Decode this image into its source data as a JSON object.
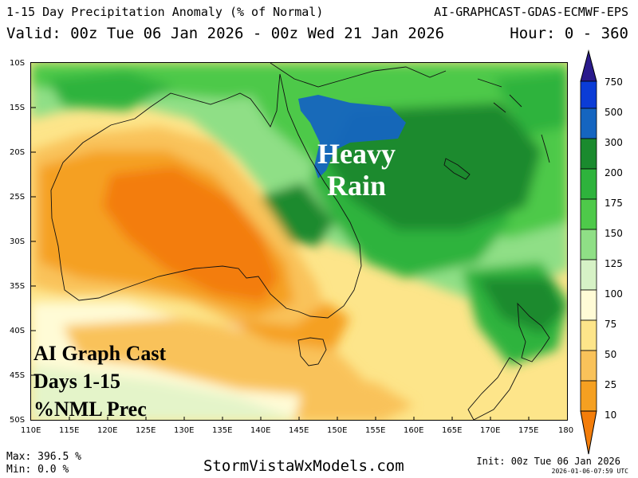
{
  "header": {
    "title": "1-15 Day Precipitation Anomaly (% of Normal)",
    "model": "AI-GRAPHCAST-GDAS-ECMWF-EPS",
    "valid": "Valid: 00z Tue 06 Jan 2026 - 00z Wed 21 Jan 2026",
    "hours": "Hour: 0 - 360"
  },
  "map": {
    "region": "Australia / Tasman Sea / New Zealand",
    "lat_labels": [
      "10S",
      "15S",
      "20S",
      "25S",
      "30S",
      "35S",
      "40S",
      "45S",
      "50S"
    ],
    "lon_labels": [
      "110E",
      "115E",
      "120E",
      "125E",
      "130E",
      "135E",
      "140E",
      "145E",
      "150E",
      "155E",
      "160E",
      "165E",
      "170E",
      "175E",
      "180"
    ],
    "annotation_main": [
      "Heavy",
      "Rain"
    ],
    "annotation_product": [
      "AI Graph Cast",
      "Days 1-15",
      "%NML Prec"
    ]
  },
  "colorbar": {
    "labels": [
      "750",
      "500",
      "300",
      "200",
      "175",
      "150",
      "125",
      "100",
      "75",
      "50",
      "25",
      "10"
    ],
    "colors": [
      "#2a1a8c",
      "#0b3cd6",
      "#1565c0",
      "#1a8a2e",
      "#2eb33c",
      "#4ec94a",
      "#8fdf86",
      "#d6f2c6",
      "#fffbd6",
      "#fde58a",
      "#f9c25a",
      "#f5a021",
      "#f37d0a"
    ]
  },
  "footer": {
    "max": "Max: 396.5 %",
    "min": "Min: 0.0 %",
    "site": "StormVistaWxModels.com",
    "init": "Init: 00z Tue 06 Jan 2026",
    "stamp": "2026-01-06-07:59 UTC"
  }
}
